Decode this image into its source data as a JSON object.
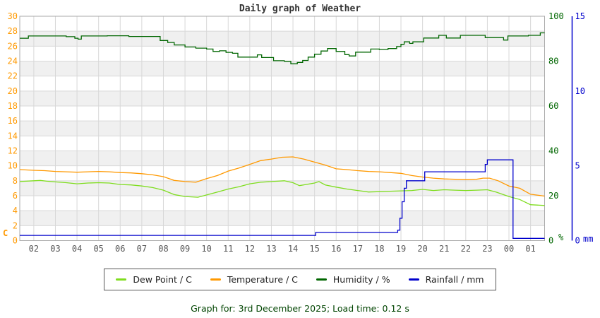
{
  "title": "Daily graph of Weather",
  "footer": "Graph for: 3rd December 2025; Load time: 0.12 s",
  "colors": {
    "grid": "#d8d8d8",
    "stripe": "#f0f0f0",
    "plot_border": "#aaaaaa",
    "x_tick_text": "#555555",
    "title_text": "#333333",
    "footer_text": "#004400"
  },
  "chart_data": {
    "type": "line",
    "title": "Daily graph of Weather",
    "x_unit": "hour of day",
    "x_range": [
      1.35,
      25.65
    ],
    "x_tick_hours": [
      2,
      3,
      4,
      5,
      6,
      7,
      8,
      9,
      10,
      11,
      12,
      13,
      14,
      15,
      16,
      17,
      18,
      19,
      20,
      21,
      22,
      23,
      24,
      25
    ],
    "x_ticks": [
      "02",
      "03",
      "04",
      "05",
      "06",
      "07",
      "08",
      "09",
      "10",
      "11",
      "12",
      "13",
      "14",
      "15",
      "16",
      "17",
      "18",
      "19",
      "20",
      "21",
      "22",
      "23",
      "00",
      "01"
    ],
    "grid": true,
    "legend_position": "bottom",
    "axes": {
      "left": {
        "label": "C",
        "range": [
          0,
          30
        ],
        "tick_step": 2,
        "color": "#ff9900"
      },
      "right_humidity": {
        "label": "%",
        "range": [
          0,
          100
        ],
        "ticks": [
          0,
          20,
          40,
          60,
          80,
          100
        ],
        "color": "#006600"
      },
      "right_rain": {
        "label": "mm",
        "range": [
          0,
          15
        ],
        "ticks": [
          0,
          5,
          10,
          15
        ],
        "color": "#0000cc"
      }
    },
    "series": [
      {
        "name": "Humidity / %",
        "axis": "right_humidity",
        "color": "#006600",
        "style": "step",
        "points": [
          [
            1.35,
            90.2
          ],
          [
            1.75,
            91.2
          ],
          [
            3.5,
            90.9
          ],
          [
            3.9,
            90.2
          ],
          [
            4.05,
            89.8
          ],
          [
            4.2,
            91.2
          ],
          [
            5.4,
            91.3
          ],
          [
            6.4,
            91.0
          ],
          [
            7.85,
            89.2
          ],
          [
            8.2,
            88.3
          ],
          [
            8.5,
            87.2
          ],
          [
            9,
            86.3
          ],
          [
            9.5,
            85.8
          ],
          [
            10,
            85.4
          ],
          [
            10.3,
            84.3
          ],
          [
            10.6,
            84.6
          ],
          [
            10.9,
            83.9
          ],
          [
            11.2,
            83.5
          ],
          [
            11.45,
            81.8
          ],
          [
            12.35,
            82.8
          ],
          [
            12.55,
            81.6
          ],
          [
            13.1,
            80.2
          ],
          [
            13.6,
            79.9
          ],
          [
            13.9,
            78.8
          ],
          [
            14.2,
            79.4
          ],
          [
            14.45,
            80.3
          ],
          [
            14.7,
            81.8
          ],
          [
            15,
            83.1
          ],
          [
            15.3,
            84.5
          ],
          [
            15.6,
            85.6
          ],
          [
            16,
            84.3
          ],
          [
            16.4,
            82.9
          ],
          [
            16.6,
            82.3
          ],
          [
            16.9,
            84.0
          ],
          [
            17.6,
            85.4
          ],
          [
            18,
            85.2
          ],
          [
            18.4,
            85.6
          ],
          [
            18.8,
            86.5
          ],
          [
            19,
            87.5
          ],
          [
            19.15,
            88.6
          ],
          [
            19.4,
            87.9
          ],
          [
            19.55,
            88.6
          ],
          [
            20.05,
            90.3
          ],
          [
            20.75,
            91.5
          ],
          [
            21.1,
            90.3
          ],
          [
            21.75,
            91.5
          ],
          [
            22.9,
            90.5
          ],
          [
            23.75,
            89.4
          ],
          [
            23.95,
            91.2
          ],
          [
            24.9,
            91.5
          ],
          [
            25.45,
            92.6
          ],
          [
            25.65,
            92.6
          ]
        ]
      },
      {
        "name": "Temperature / C",
        "axis": "left",
        "color": "#ff9900",
        "style": "line",
        "points": [
          [
            1.35,
            9.5
          ],
          [
            2,
            9.4
          ],
          [
            2.5,
            9.35
          ],
          [
            3,
            9.25
          ],
          [
            3.5,
            9.2
          ],
          [
            4,
            9.15
          ],
          [
            4.5,
            9.2
          ],
          [
            5,
            9.25
          ],
          [
            5.5,
            9.2
          ],
          [
            6,
            9.1
          ],
          [
            6.5,
            9.05
          ],
          [
            7,
            8.95
          ],
          [
            7.5,
            8.8
          ],
          [
            8,
            8.55
          ],
          [
            8.5,
            8.05
          ],
          [
            9,
            7.9
          ],
          [
            9.5,
            7.8
          ],
          [
            10,
            8.3
          ],
          [
            10.5,
            8.7
          ],
          [
            11,
            9.3
          ],
          [
            11.5,
            9.7
          ],
          [
            12,
            10.2
          ],
          [
            12.5,
            10.7
          ],
          [
            13,
            10.9
          ],
          [
            13.5,
            11.15
          ],
          [
            14,
            11.2
          ],
          [
            14.5,
            10.9
          ],
          [
            15,
            10.5
          ],
          [
            15.5,
            10.1
          ],
          [
            16,
            9.6
          ],
          [
            16.5,
            9.5
          ],
          [
            17,
            9.35
          ],
          [
            17.5,
            9.25
          ],
          [
            18,
            9.2
          ],
          [
            18.5,
            9.1
          ],
          [
            19,
            9.0
          ],
          [
            19.5,
            8.7
          ],
          [
            20,
            8.5
          ],
          [
            20.5,
            8.35
          ],
          [
            21,
            8.25
          ],
          [
            21.5,
            8.2
          ],
          [
            22,
            8.15
          ],
          [
            22.5,
            8.2
          ],
          [
            22.8,
            8.35
          ],
          [
            23.1,
            8.35
          ],
          [
            23.5,
            8.0
          ],
          [
            24,
            7.3
          ],
          [
            24.5,
            7.0
          ],
          [
            25,
            6.2
          ],
          [
            25.65,
            5.95
          ]
        ]
      },
      {
        "name": "Dew Point / C",
        "axis": "left",
        "color": "#7fdd1f",
        "style": "line",
        "points": [
          [
            1.35,
            7.9
          ],
          [
            2,
            8.0
          ],
          [
            2.3,
            8.05
          ],
          [
            2.6,
            7.95
          ],
          [
            3,
            7.85
          ],
          [
            3.5,
            7.75
          ],
          [
            4,
            7.6
          ],
          [
            4.5,
            7.7
          ],
          [
            5,
            7.75
          ],
          [
            5.5,
            7.7
          ],
          [
            6,
            7.5
          ],
          [
            6.5,
            7.45
          ],
          [
            7,
            7.3
          ],
          [
            7.5,
            7.1
          ],
          [
            8,
            6.75
          ],
          [
            8.5,
            6.15
          ],
          [
            9,
            5.9
          ],
          [
            9.6,
            5.8
          ],
          [
            10,
            6.1
          ],
          [
            10.5,
            6.5
          ],
          [
            11,
            6.9
          ],
          [
            11.5,
            7.2
          ],
          [
            12,
            7.6
          ],
          [
            12.5,
            7.8
          ],
          [
            13,
            7.9
          ],
          [
            13.6,
            8.0
          ],
          [
            14,
            7.75
          ],
          [
            14.3,
            7.35
          ],
          [
            14.6,
            7.5
          ],
          [
            15,
            7.7
          ],
          [
            15.2,
            7.9
          ],
          [
            15.5,
            7.45
          ],
          [
            16,
            7.15
          ],
          [
            16.5,
            6.9
          ],
          [
            17,
            6.7
          ],
          [
            17.5,
            6.5
          ],
          [
            18,
            6.55
          ],
          [
            18.5,
            6.6
          ],
          [
            19,
            6.65
          ],
          [
            19.5,
            6.7
          ],
          [
            20,
            6.85
          ],
          [
            20.5,
            6.7
          ],
          [
            21,
            6.8
          ],
          [
            21.5,
            6.75
          ],
          [
            22,
            6.7
          ],
          [
            22.5,
            6.75
          ],
          [
            23,
            6.8
          ],
          [
            23.4,
            6.5
          ],
          [
            24,
            5.9
          ],
          [
            24.5,
            5.5
          ],
          [
            25,
            4.8
          ],
          [
            25.65,
            4.7
          ]
        ]
      },
      {
        "name": "Rainfall / mm",
        "axis": "right_rain",
        "color": "#0000cc",
        "style": "step",
        "points": [
          [
            1.35,
            0.35
          ],
          [
            15.05,
            0.55
          ],
          [
            18.85,
            0.7
          ],
          [
            18.95,
            1.5
          ],
          [
            19.05,
            2.6
          ],
          [
            19.15,
            3.5
          ],
          [
            19.25,
            4.0
          ],
          [
            20.1,
            4.6
          ],
          [
            22.9,
            5.1
          ],
          [
            23.0,
            5.4
          ],
          [
            24.19,
            0.15
          ],
          [
            25.65,
            0.15
          ]
        ]
      }
    ]
  },
  "legend": [
    {
      "label": "Dew Point / C",
      "color": "#7fdd1f"
    },
    {
      "label": "Temperature / C",
      "color": "#ff9900"
    },
    {
      "label": "Humidity / %",
      "color": "#006600"
    },
    {
      "label": "Rainfall / mm",
      "color": "#0000cc"
    }
  ]
}
